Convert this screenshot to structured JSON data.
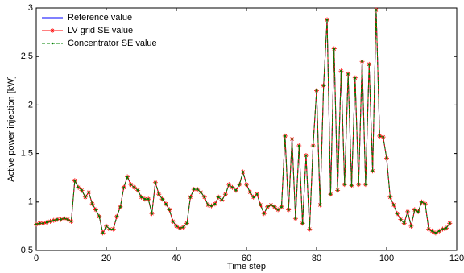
{
  "chart_data": {
    "type": "line",
    "xlabel": "Time step",
    "ylabel": "Active power injection [kW]",
    "xlim": [
      0,
      120
    ],
    "xticks": [
      0,
      20,
      40,
      60,
      80,
      100,
      120
    ],
    "ylim": [
      0.5,
      3
    ],
    "yticks": [
      {
        "value": 0.5,
        "label": "0,5"
      },
      1,
      {
        "value": 1.5,
        "label": "1,5"
      },
      2,
      {
        "value": 2.5,
        "label": "2,5"
      },
      3
    ],
    "legend": "upper left",
    "x": [
      0,
      1,
      2,
      3,
      4,
      5,
      6,
      7,
      8,
      9,
      10,
      11,
      12,
      13,
      14,
      15,
      16,
      17,
      18,
      19,
      20,
      21,
      22,
      23,
      24,
      25,
      26,
      27,
      28,
      29,
      30,
      31,
      32,
      33,
      34,
      35,
      36,
      37,
      38,
      39,
      40,
      41,
      42,
      43,
      44,
      45,
      46,
      47,
      48,
      49,
      50,
      51,
      52,
      53,
      54,
      55,
      56,
      57,
      58,
      59,
      60,
      61,
      62,
      63,
      64,
      65,
      66,
      67,
      68,
      69,
      70,
      71,
      72,
      73,
      74,
      75,
      76,
      77,
      78,
      79,
      80,
      81,
      82,
      83,
      84,
      85,
      86,
      87,
      88,
      89,
      90,
      91,
      92,
      93,
      94,
      95,
      96,
      97,
      98,
      99,
      100,
      101,
      102,
      103,
      104,
      105,
      106,
      107,
      108,
      109,
      110,
      111,
      112,
      113,
      114,
      115,
      116,
      117,
      118
    ],
    "series": [
      {
        "name": "Reference value",
        "color": "#0000ff",
        "line_style": "solid",
        "marker": null,
        "values": [
          0.77,
          0.78,
          0.78,
          0.79,
          0.8,
          0.81,
          0.82,
          0.82,
          0.83,
          0.82,
          0.8,
          1.22,
          1.15,
          1.12,
          1.05,
          1.1,
          0.98,
          0.92,
          0.85,
          0.68,
          0.75,
          0.72,
          0.72,
          0.85,
          0.95,
          1.15,
          1.26,
          1.18,
          1.15,
          1.12,
          1.05,
          1.03,
          1.03,
          0.88,
          1.2,
          1.08,
          1.03,
          0.98,
          0.92,
          0.8,
          0.75,
          0.73,
          0.74,
          0.78,
          1.05,
          1.13,
          1.13,
          1.1,
          1.05,
          0.97,
          0.96,
          0.98,
          1.05,
          1.02,
          1.08,
          1.18,
          1.15,
          1.12,
          1.18,
          1.31,
          1.18,
          1.1,
          1.05,
          1.08,
          0.97,
          0.88,
          0.95,
          0.97,
          0.95,
          0.92,
          0.95,
          1.68,
          0.92,
          1.65,
          0.83,
          1.58,
          0.78,
          1.48,
          0.72,
          1.58,
          2.15,
          0.97,
          2.2,
          2.88,
          1.08,
          2.58,
          1.12,
          2.35,
          1.18,
          2.32,
          1.17,
          2.28,
          1.18,
          2.45,
          1.18,
          2.42,
          1.32,
          2.98,
          1.68,
          1.67,
          1.45,
          1.05,
          0.97,
          0.88,
          0.82,
          0.78,
          0.9,
          0.75,
          0.92,
          0.9,
          1.0,
          0.98,
          0.72,
          0.7,
          0.68,
          0.7,
          0.72,
          0.73,
          0.78
        ]
      },
      {
        "name": "LV grid SE value",
        "color": "#ff0000",
        "line_style": "solid",
        "marker": "star",
        "values": [
          0.77,
          0.78,
          0.78,
          0.79,
          0.8,
          0.81,
          0.82,
          0.82,
          0.83,
          0.82,
          0.8,
          1.22,
          1.15,
          1.12,
          1.05,
          1.1,
          0.98,
          0.92,
          0.85,
          0.68,
          0.75,
          0.72,
          0.72,
          0.85,
          0.95,
          1.15,
          1.26,
          1.18,
          1.15,
          1.12,
          1.05,
          1.03,
          1.03,
          0.88,
          1.2,
          1.08,
          1.03,
          0.98,
          0.92,
          0.8,
          0.75,
          0.73,
          0.74,
          0.78,
          1.05,
          1.13,
          1.13,
          1.1,
          1.05,
          0.97,
          0.96,
          0.98,
          1.05,
          1.02,
          1.08,
          1.18,
          1.15,
          1.12,
          1.18,
          1.31,
          1.18,
          1.1,
          1.05,
          1.08,
          0.97,
          0.88,
          0.95,
          0.97,
          0.95,
          0.92,
          0.95,
          1.68,
          0.92,
          1.65,
          0.83,
          1.58,
          0.78,
          1.48,
          0.72,
          1.58,
          2.15,
          0.97,
          2.2,
          2.88,
          1.08,
          2.58,
          1.12,
          2.35,
          1.18,
          2.32,
          1.17,
          2.28,
          1.18,
          2.45,
          1.18,
          2.42,
          1.32,
          2.98,
          1.68,
          1.67,
          1.45,
          1.05,
          0.97,
          0.88,
          0.82,
          0.78,
          0.9,
          0.75,
          0.92,
          0.9,
          1.0,
          0.98,
          0.72,
          0.7,
          0.68,
          0.7,
          0.72,
          0.73,
          0.78
        ]
      },
      {
        "name": "Concentrator SE value",
        "color": "#008000",
        "line_style": "dashed",
        "marker": "dot",
        "values": [
          0.77,
          0.78,
          0.78,
          0.79,
          0.8,
          0.81,
          0.82,
          0.82,
          0.83,
          0.82,
          0.8,
          1.22,
          1.15,
          1.12,
          1.05,
          1.1,
          0.98,
          0.92,
          0.85,
          0.68,
          0.75,
          0.72,
          0.72,
          0.85,
          0.95,
          1.15,
          1.26,
          1.18,
          1.15,
          1.12,
          1.05,
          1.03,
          1.03,
          0.88,
          1.2,
          1.08,
          1.03,
          0.98,
          0.92,
          0.8,
          0.75,
          0.73,
          0.74,
          0.78,
          1.05,
          1.13,
          1.13,
          1.1,
          1.05,
          0.97,
          0.96,
          0.98,
          1.05,
          1.02,
          1.08,
          1.18,
          1.15,
          1.12,
          1.18,
          1.31,
          1.18,
          1.1,
          1.05,
          1.08,
          0.97,
          0.88,
          0.95,
          0.97,
          0.95,
          0.92,
          0.95,
          1.68,
          0.92,
          1.65,
          0.83,
          1.58,
          0.78,
          1.48,
          0.72,
          1.58,
          2.15,
          0.97,
          2.2,
          2.88,
          1.08,
          2.58,
          1.12,
          2.35,
          1.18,
          2.32,
          1.17,
          2.28,
          1.18,
          2.45,
          1.18,
          2.42,
          1.32,
          2.98,
          1.68,
          1.67,
          1.45,
          1.05,
          0.97,
          0.88,
          0.82,
          0.78,
          0.9,
          0.75,
          0.92,
          0.9,
          1.0,
          0.98,
          0.72,
          0.7,
          0.68,
          0.7,
          0.72,
          0.73,
          0.78
        ]
      }
    ]
  }
}
